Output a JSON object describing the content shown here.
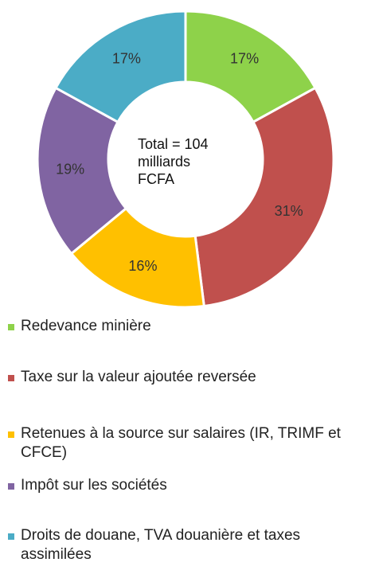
{
  "chart_data": {
    "type": "pie",
    "donut": true,
    "center_text": [
      "Total = 104",
      "milliards",
      "FCFA"
    ],
    "categories": [
      "Redevance minière",
      "Taxe sur la valeur ajoutée reversée",
      "Retenues à la source sur salaires (IR, TRIMF et CFCE)",
      "Impôt sur les sociétés",
      "Droits de douane, TVA douanière et taxes assimilées"
    ],
    "values": [
      17,
      31,
      16,
      19,
      17
    ],
    "value_labels": [
      "17%",
      "31%",
      "16%",
      "19%",
      "17%"
    ],
    "colors": [
      "#8ed24a",
      "#c0504d",
      "#ffc000",
      "#8064a2",
      "#4bacc6"
    ]
  }
}
